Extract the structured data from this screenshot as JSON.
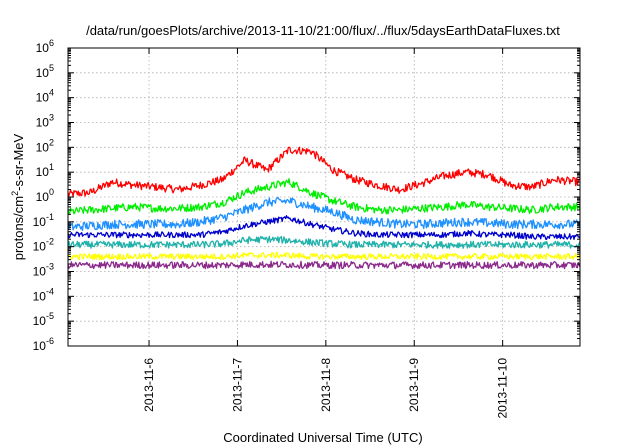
{
  "chart_data": {
    "type": "line",
    "title": "/data/run/goesPlots/archive/2013-11-10/21:00/flux/../flux/5daysEarthDataFluxes.txt",
    "xlabel": "Coordinated Universal Time (UTC)",
    "ylabel_parts": [
      "protons/cm",
      "2",
      "-s-sr-MeV"
    ],
    "y_scale": "log",
    "ylim": [
      1e-06,
      1000000.0
    ],
    "xlim": [
      "2013-11-05T02:00",
      "2013-11-10T21:00"
    ],
    "grid": true,
    "x_ticks": [
      "2013-11-6",
      "2013-11-7",
      "2013-11-8",
      "2013-11-9",
      "2013-11-10"
    ],
    "y_ticks": [
      {
        "base": "10",
        "exp": "6",
        "value": 1000000.0
      },
      {
        "base": "10",
        "exp": "5",
        "value": 100000.0
      },
      {
        "base": "10",
        "exp": "4",
        "value": 10000.0
      },
      {
        "base": "10",
        "exp": "3",
        "value": 1000.0
      },
      {
        "base": "10",
        "exp": "2",
        "value": 100.0
      },
      {
        "base": "10",
        "exp": "1",
        "value": 10.0
      },
      {
        "base": "10",
        "exp": "0",
        "value": 1.0
      },
      {
        "base": "10",
        "exp": "-1",
        "value": 0.1
      },
      {
        "base": "10",
        "exp": "-2",
        "value": 0.01
      },
      {
        "base": "10",
        "exp": "-3",
        "value": 0.001
      },
      {
        "base": "10",
        "exp": "-4",
        "value": 0.0001
      },
      {
        "base": "10",
        "exp": "-5",
        "value": 1e-05
      },
      {
        "base": "10",
        "exp": "-6",
        "value": 1e-06
      }
    ],
    "x": [
      "2013-11-05T02:00",
      "2013-11-05T08:00",
      "2013-11-05T14:00",
      "2013-11-05T20:00",
      "2013-11-06T02:00",
      "2013-11-06T08:00",
      "2013-11-06T14:00",
      "2013-11-06T20:00",
      "2013-11-07T02:00",
      "2013-11-07T08:00",
      "2013-11-07T14:00",
      "2013-11-07T20:00",
      "2013-11-08T02:00",
      "2013-11-08T08:00",
      "2013-11-08T14:00",
      "2013-11-08T20:00",
      "2013-11-09T02:00",
      "2013-11-09T08:00",
      "2013-11-09T14:00",
      "2013-11-09T20:00",
      "2013-11-10T02:00",
      "2013-11-10T08:00",
      "2013-11-10T14:00",
      "2013-11-10T21:00"
    ],
    "series": [
      {
        "color": "#ff0000",
        "noise": 0.08,
        "values": [
          1.3,
          1.5,
          4.0,
          3.0,
          2.5,
          2.0,
          3.0,
          5.0,
          30,
          12,
          80,
          70,
          12,
          5.0,
          3.0,
          2.0,
          3.5,
          7.0,
          10,
          8.0,
          3.0,
          2.5,
          5.0,
          4.0
        ]
      },
      {
        "color": "#00ee00",
        "noise": 0.08,
        "values": [
          0.25,
          0.3,
          0.35,
          0.4,
          0.35,
          0.35,
          0.4,
          0.6,
          1.5,
          2.5,
          4.0,
          1.5,
          0.7,
          0.4,
          0.3,
          0.3,
          0.35,
          0.4,
          0.5,
          0.4,
          0.35,
          0.3,
          0.4,
          0.4
        ]
      },
      {
        "color": "#1e90ff",
        "noise": 0.09,
        "values": [
          0.06,
          0.07,
          0.08,
          0.08,
          0.08,
          0.08,
          0.1,
          0.15,
          0.3,
          0.6,
          0.7,
          0.4,
          0.25,
          0.12,
          0.1,
          0.08,
          0.08,
          0.09,
          0.1,
          0.09,
          0.08,
          0.08,
          0.08,
          0.08
        ]
      },
      {
        "color": "#0000cd",
        "noise": 0.06,
        "values": [
          0.03,
          0.03,
          0.03,
          0.03,
          0.03,
          0.03,
          0.03,
          0.04,
          0.07,
          0.1,
          0.14,
          0.08,
          0.05,
          0.035,
          0.03,
          0.03,
          0.03,
          0.03,
          0.035,
          0.03,
          0.03,
          0.025,
          0.025,
          0.025
        ]
      },
      {
        "color": "#20b2aa",
        "noise": 0.07,
        "values": [
          0.012,
          0.012,
          0.012,
          0.012,
          0.012,
          0.012,
          0.012,
          0.013,
          0.018,
          0.02,
          0.018,
          0.015,
          0.013,
          0.012,
          0.012,
          0.012,
          0.012,
          0.012,
          0.012,
          0.012,
          0.012,
          0.012,
          0.012,
          0.012
        ]
      },
      {
        "color": "#ffff00",
        "noise": 0.06,
        "values": [
          0.004,
          0.004,
          0.004,
          0.004,
          0.004,
          0.004,
          0.004,
          0.004,
          0.0045,
          0.0045,
          0.0045,
          0.004,
          0.004,
          0.004,
          0.004,
          0.004,
          0.004,
          0.004,
          0.004,
          0.004,
          0.004,
          0.004,
          0.004,
          0.004
        ]
      },
      {
        "color": "#8b2a8b",
        "noise": 0.07,
        "values": [
          0.0018,
          0.0018,
          0.0018,
          0.0018,
          0.0018,
          0.0018,
          0.0018,
          0.0018,
          0.0019,
          0.0019,
          0.0019,
          0.0018,
          0.0018,
          0.0018,
          0.0018,
          0.0018,
          0.0018,
          0.0018,
          0.0018,
          0.0018,
          0.0018,
          0.0018,
          0.0018,
          0.0018
        ]
      }
    ]
  }
}
